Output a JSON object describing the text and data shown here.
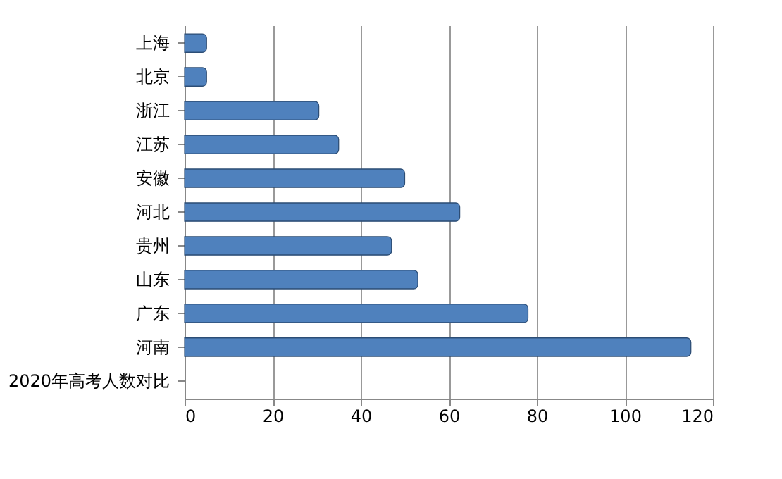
{
  "chart_data": {
    "type": "bar",
    "orientation": "horizontal",
    "categories": [
      "上海",
      "北京",
      "浙江",
      "江苏",
      "安徽",
      "河北",
      "贵州",
      "山东",
      "广东",
      "河南",
      "2020年高考人数对比"
    ],
    "values": [
      5,
      5,
      30.5,
      35,
      50,
      62.5,
      47,
      53,
      78,
      115,
      null
    ],
    "color": "#4f81bd",
    "xlim": [
      0,
      120
    ],
    "xticks": [
      0,
      20,
      40,
      60,
      80,
      100,
      120
    ],
    "grid": "x"
  }
}
